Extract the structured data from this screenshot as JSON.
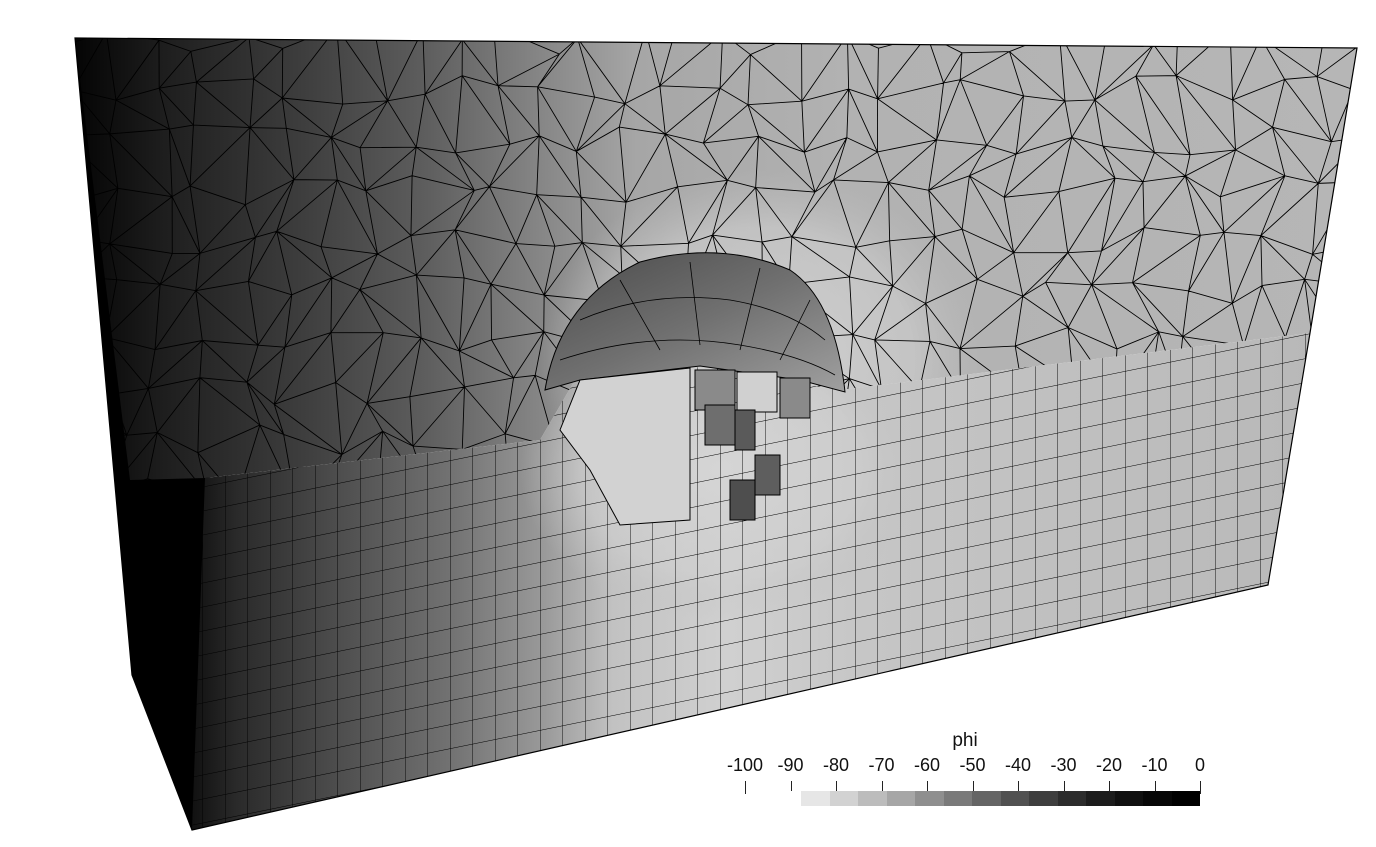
{
  "viewer": {
    "field_name": "phi",
    "color_map": "grayscale",
    "background": "#ffffff",
    "mesh_edge_color": "#000000",
    "scalar_range": [
      -100,
      0
    ],
    "colorbar": {
      "title": "phi",
      "tick_labels": [
        "-100",
        "-90",
        "-80",
        "-70",
        "-60",
        "-50",
        "-40",
        "-30",
        "-20",
        "-10",
        "0"
      ],
      "tick_values": [
        -100,
        -90,
        -80,
        -70,
        -60,
        -50,
        -40,
        -30,
        -20,
        -10,
        0
      ],
      "bin_colors": [
        "#ffffff",
        "#e6e6e6",
        "#d2d2d2",
        "#bcbcbc",
        "#a6a6a6",
        "#8f8f8f",
        "#7a7a7a",
        "#656565",
        "#515151",
        "#3e3e3e",
        "#2c2c2c",
        "#1c1c1c",
        "#101010",
        "#070707",
        "#000000"
      ]
    },
    "scene": {
      "description_icon": "fem-mesh-block-icon",
      "upper_region_mesh": "tetrahedral",
      "lower_region_mesh": "hexahedral",
      "sphere_cutout": true
    }
  }
}
